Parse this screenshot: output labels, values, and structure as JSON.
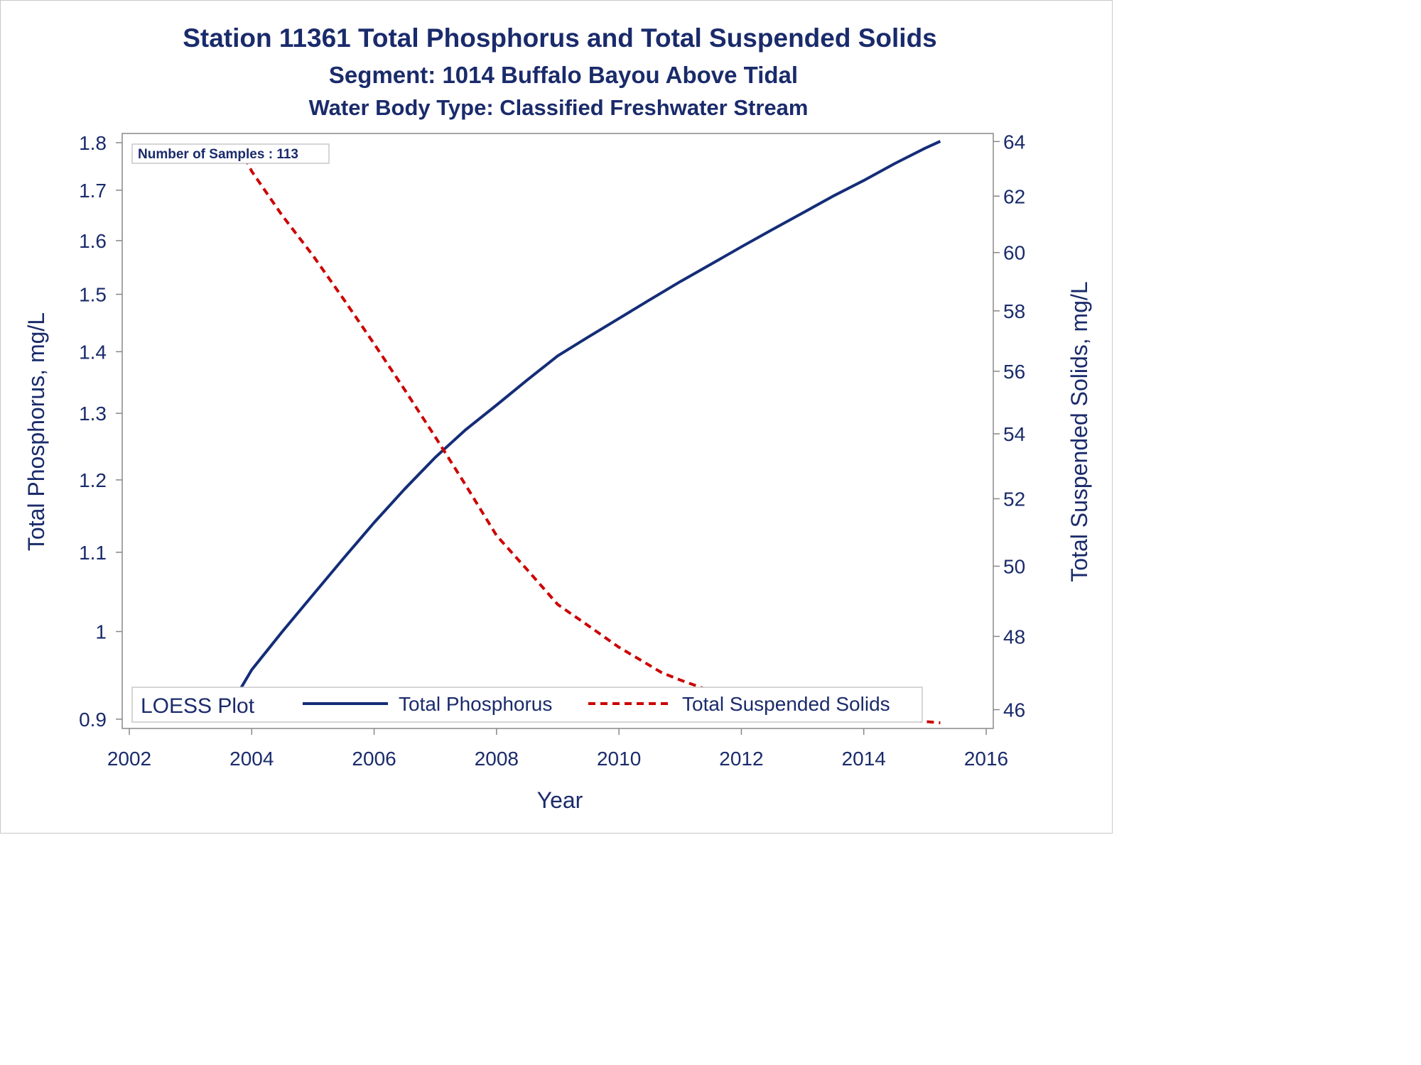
{
  "chart_data": {
    "type": "line",
    "title": "Station 11361  Total Phosphorus and Total Suspended Solids",
    "subtitle": "Segment: 1014  Buffalo Bayou Above Tidal",
    "subtitle2": "Water Body Type: Classified Freshwater Stream",
    "xlabel": "Year",
    "ylabel": "Total Phosphorus, mg/L",
    "y2label": "Total Suspended Solids, mg/L",
    "xlim": [
      2002,
      2016
    ],
    "ylim": [
      0.89,
      1.82
    ],
    "y2lim": [
      45.5,
      64.3
    ],
    "y_scale": "log",
    "y2_scale": "log",
    "x_ticks": [
      "2002",
      "2004",
      "2006",
      "2008",
      "2010",
      "2012",
      "2014",
      "2016"
    ],
    "y_ticks": [
      "0.9",
      "1",
      "1.1",
      "1.2",
      "1.3",
      "1.4",
      "1.5",
      "1.6",
      "1.7",
      "1.8"
    ],
    "y2_ticks": [
      "46",
      "48",
      "50",
      "52",
      "54",
      "56",
      "58",
      "60",
      "62",
      "64"
    ],
    "annotation": "Number of Samples : 113",
    "grid": false,
    "legend": {
      "title": "LOESS Plot",
      "position": "bottom-inside",
      "entries": [
        "Total Phosphorus",
        "Total Suspended Solids"
      ]
    },
    "colors": {
      "text": "#1a2b6b",
      "phosphorus": "#142d78",
      "tss": "#cc0000",
      "axis": "#888888"
    },
    "series": [
      {
        "name": "Total Phosphorus",
        "axis": "left",
        "style": "solid",
        "x": [
          2003.7,
          2004.0,
          2004.5,
          2005.0,
          2005.5,
          2006.0,
          2006.5,
          2007.0,
          2007.5,
          2008.0,
          2008.5,
          2009.0,
          2009.5,
          2010.0,
          2010.5,
          2011.0,
          2011.5,
          2012.0,
          2012.5,
          2013.0,
          2013.5,
          2014.0,
          2014.5,
          2015.0,
          2015.25
        ],
        "y": [
          0.92,
          0.955,
          1.0,
          1.045,
          1.092,
          1.14,
          1.187,
          1.233,
          1.275,
          1.313,
          1.353,
          1.393,
          1.425,
          1.457,
          1.49,
          1.523,
          1.555,
          1.588,
          1.621,
          1.654,
          1.688,
          1.72,
          1.755,
          1.788,
          1.803
        ]
      },
      {
        "name": "Total Suspended Solids",
        "axis": "right",
        "style": "dashed",
        "x": [
          2003.8,
          2004.0,
          2004.5,
          2005.0,
          2005.5,
          2006.0,
          2006.5,
          2007.0,
          2007.5,
          2008.0,
          2008.5,
          2009.0,
          2009.5,
          2010.0,
          2010.5,
          2010.7,
          2011.0,
          2011.5,
          2012.0,
          2012.5,
          2013.0,
          2013.5,
          2014.0,
          2014.5,
          2015.25
        ],
        "y": [
          63.8,
          62.9,
          61.3,
          59.9,
          58.4,
          56.9,
          55.4,
          53.9,
          52.4,
          50.9,
          49.9,
          48.9,
          48.3,
          47.7,
          47.2,
          47.0,
          46.8,
          46.5,
          46.35,
          46.15,
          46.0,
          45.9,
          45.8,
          45.75,
          45.65
        ]
      }
    ]
  }
}
